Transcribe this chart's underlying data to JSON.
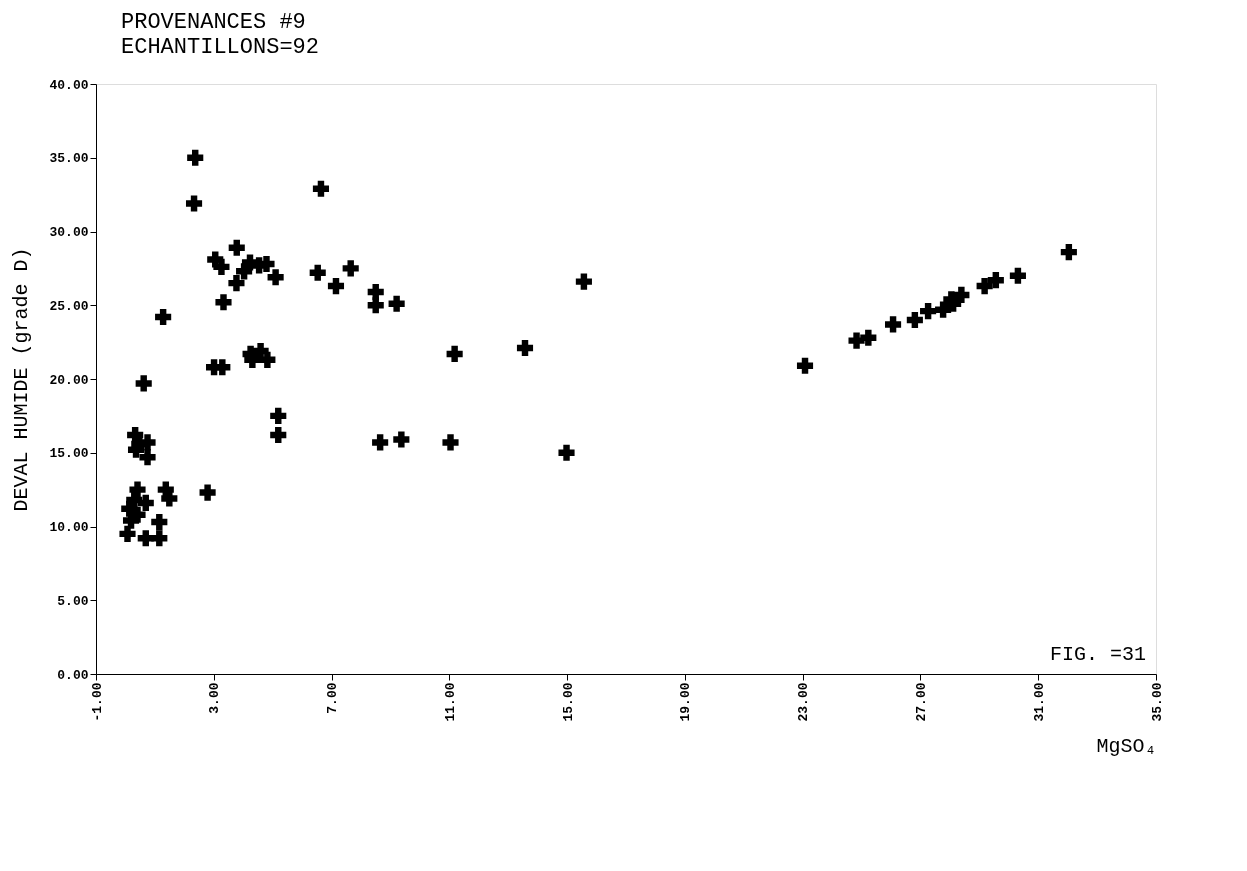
{
  "chart_data": {
    "type": "scatter",
    "title": "PROVENANCES #9",
    "subtitle": "ECHANTILLONS=92",
    "xlabel": "MgSO₄",
    "ylabel": "DEVAL HUMIDE (grade D)",
    "annotations": [
      "FIG. =31"
    ],
    "marker": "cross",
    "grid": false,
    "xlim": [
      -1,
      35
    ],
    "ylim": [
      0,
      40
    ],
    "xticks": [
      {
        "value": -1,
        "label": "-1.00"
      },
      {
        "value": 3,
        "label": "3.00"
      },
      {
        "value": 7,
        "label": "7.00"
      },
      {
        "value": 11,
        "label": "11.00"
      },
      {
        "value": 15,
        "label": "15.00"
      },
      {
        "value": 19,
        "label": "19.00"
      },
      {
        "value": 23,
        "label": "23.00"
      },
      {
        "value": 27,
        "label": "27.00"
      },
      {
        "value": 31,
        "label": "31.00"
      },
      {
        "value": 35,
        "label": "35.00"
      }
    ],
    "yticks": [
      {
        "value": 0,
        "label": "0.00"
      },
      {
        "value": 5,
        "label": "5.00"
      },
      {
        "value": 10,
        "label": "10.00"
      },
      {
        "value": 15,
        "label": "15.00"
      },
      {
        "value": 20,
        "label": "20.00"
      },
      {
        "value": 25,
        "label": "25.00"
      },
      {
        "value": 30,
        "label": "30.00"
      },
      {
        "value": 35,
        "label": "35.00"
      },
      {
        "value": 40,
        "label": "40.00"
      }
    ],
    "series": [
      {
        "color": "#000000",
        "x": [
          2.37,
          2.33,
          6.64,
          1.28,
          3.33,
          0.62,
          3.01,
          3.29,
          3.78,
          3.05,
          3.26,
          4.23,
          4.03,
          3.77,
          4.79,
          5.1,
          4.54,
          6.53,
          4.25,
          4.59,
          4.82,
          4.31,
          5.19,
          5.19,
          2.79,
          0.33,
          0.75,
          0.36,
          0.75,
          0.47,
          0.41,
          1.37,
          1.49,
          0.3,
          0.69,
          0.13,
          0.41,
          1.15,
          0.19,
          0.07,
          0.69,
          1.15,
          7.65,
          7.15,
          8.5,
          8.5,
          9.21,
          11.18,
          13.57,
          15.57,
          8.65,
          9.37,
          11.04,
          14.98,
          23.08,
          32.04,
          24.83,
          25.23,
          26.07,
          26.81,
          27.26,
          27.77,
          28.05,
          28.39,
          28.11,
          29.18,
          29.56,
          30.31
        ],
        "values": [
          35.0,
          31.9,
          32.9,
          24.2,
          25.2,
          19.7,
          20.8,
          20.8,
          28.9,
          28.1,
          27.6,
          27.9,
          27.3,
          26.5,
          27.8,
          26.9,
          27.7,
          27.2,
          21.7,
          21.9,
          21.3,
          21.3,
          17.5,
          16.2,
          12.3,
          16.2,
          15.7,
          15.2,
          14.7,
          15.6,
          12.5,
          12.5,
          11.9,
          11.8,
          11.6,
          11.2,
          10.8,
          10.3,
          10.4,
          9.5,
          9.2,
          9.2,
          27.5,
          26.3,
          25.9,
          25.0,
          25.1,
          21.7,
          22.1,
          26.6,
          15.7,
          15.9,
          15.7,
          15.0,
          20.9,
          28.6,
          22.6,
          22.8,
          23.7,
          24.0,
          24.6,
          24.7,
          25.4,
          25.7,
          25.1,
          26.3,
          26.7,
          27.0
        ]
      }
    ]
  }
}
